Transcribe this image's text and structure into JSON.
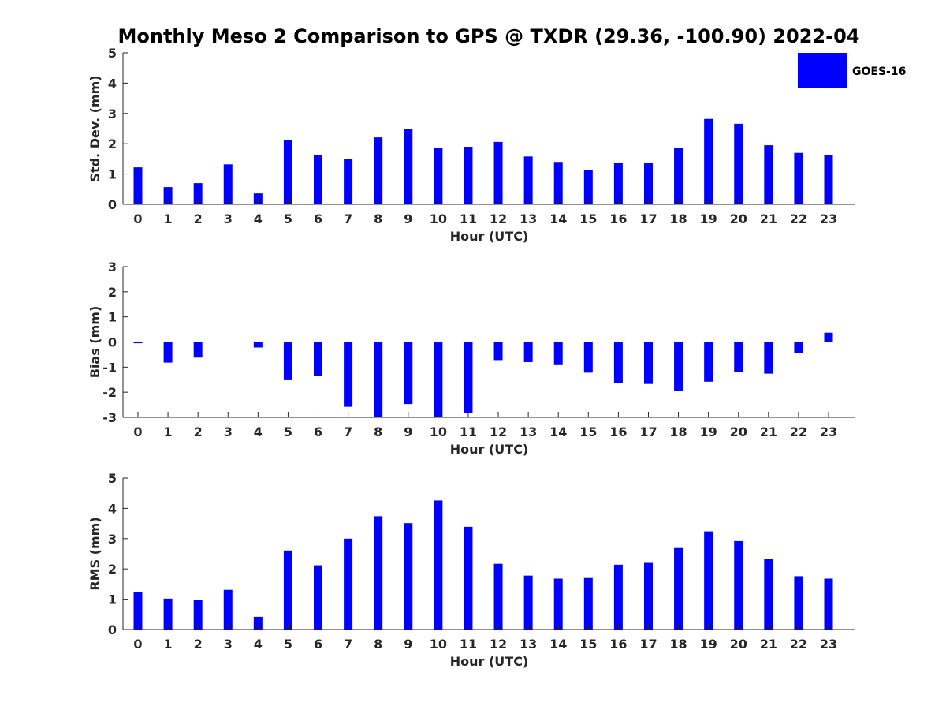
{
  "title": "Monthly Meso 2 Comparison to GPS @ TXDR (29.36, -100.90) 2022-04",
  "legend": {
    "label": "GOES-16",
    "color": "#0000ff",
    "placement": "top-right"
  },
  "chart_data": [
    {
      "type": "bar",
      "name": "std-dev",
      "xlabel": "Hour (UTC)",
      "ylabel": "Std. Dev. (mm)",
      "ylim": [
        0,
        5
      ],
      "yticks": [
        "0",
        "1",
        "2",
        "3",
        "4",
        "5"
      ],
      "categories": [
        "0",
        "1",
        "2",
        "3",
        "4",
        "5",
        "6",
        "7",
        "8",
        "9",
        "10",
        "11",
        "12",
        "13",
        "14",
        "15",
        "16",
        "17",
        "18",
        "19",
        "20",
        "21",
        "22",
        "23"
      ],
      "values": [
        1.22,
        0.57,
        0.7,
        1.32,
        0.36,
        2.11,
        1.62,
        1.51,
        2.21,
        2.5,
        1.85,
        1.9,
        2.06,
        1.58,
        1.4,
        1.14,
        1.38,
        1.37,
        1.85,
        2.82,
        2.66,
        1.95,
        1.7,
        1.64
      ],
      "color": "#0000ff"
    },
    {
      "type": "bar",
      "name": "bias",
      "xlabel": "Hour (UTC)",
      "ylabel": "Bias (mm)",
      "ylim": [
        -3,
        3
      ],
      "yticks": [
        "-3",
        "-2",
        "-1",
        "0",
        "1",
        "2",
        "3"
      ],
      "categories": [
        "0",
        "1",
        "2",
        "3",
        "4",
        "5",
        "6",
        "7",
        "8",
        "9",
        "10",
        "11",
        "12",
        "13",
        "14",
        "15",
        "16",
        "17",
        "18",
        "19",
        "20",
        "21",
        "22",
        "23"
      ],
      "values": [
        -0.05,
        -0.82,
        -0.62,
        0.0,
        -0.22,
        -1.52,
        -1.35,
        -2.58,
        -3.0,
        -2.47,
        -3.0,
        -2.82,
        -0.72,
        -0.8,
        -0.92,
        -1.22,
        -1.64,
        -1.67,
        -1.96,
        -1.58,
        -1.18,
        -1.26,
        -0.45,
        0.37
      ],
      "color": "#0000ff"
    },
    {
      "type": "bar",
      "name": "rms",
      "xlabel": "Hour (UTC)",
      "ylabel": "RMS (mm)",
      "ylim": [
        0,
        5
      ],
      "yticks": [
        "0",
        "1",
        "2",
        "3",
        "4",
        "5"
      ],
      "categories": [
        "0",
        "1",
        "2",
        "3",
        "4",
        "5",
        "6",
        "7",
        "8",
        "9",
        "10",
        "11",
        "12",
        "13",
        "14",
        "15",
        "16",
        "17",
        "18",
        "19",
        "20",
        "21",
        "22",
        "23"
      ],
      "values": [
        1.23,
        1.02,
        0.97,
        1.31,
        0.42,
        2.61,
        2.12,
        3.0,
        3.74,
        3.51,
        4.26,
        3.39,
        2.17,
        1.78,
        1.68,
        1.7,
        2.14,
        2.2,
        2.69,
        3.24,
        2.92,
        2.32,
        1.76,
        1.68
      ],
      "color": "#0000ff"
    }
  ]
}
